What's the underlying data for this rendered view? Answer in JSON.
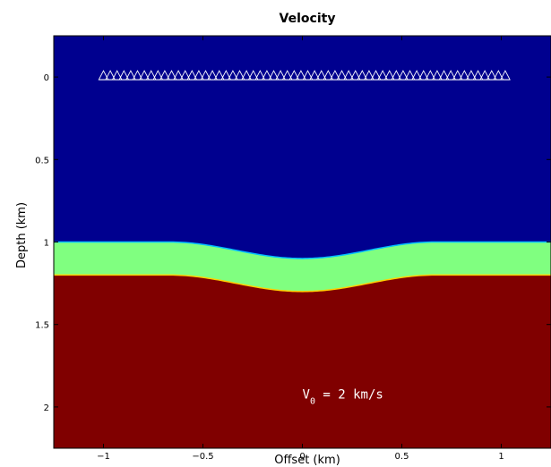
{
  "chart_data": {
    "type": "heatmap",
    "title": "Velocity",
    "xlabel": "Offset (km)",
    "ylabel": "Depth (km)",
    "xlim": [
      -1.25,
      1.25
    ],
    "ylim": [
      -0.25,
      2.25
    ],
    "y_inverted": true,
    "xticks": [
      -1,
      -0.5,
      0,
      0.5,
      1
    ],
    "xtick_labels": [
      "−1",
      "−0.5",
      "0",
      "0.5",
      "1"
    ],
    "yticks": [
      0,
      0.5,
      1,
      1.5,
      2
    ],
    "ytick_labels": [
      "0",
      "0.5",
      "1",
      "1.5",
      "2"
    ],
    "grid": false,
    "layers": [
      {
        "name": "top layer",
        "color": "#00008f"
      },
      {
        "name": "middle layer",
        "color": "#80ff80"
      },
      {
        "name": "bottom layer",
        "color": "#800000"
      }
    ],
    "interfaces": [
      {
        "flat_depth": 1.0,
        "center_depth": 1.1,
        "bump_halfwidth": 0.67,
        "line_color": "#00bfff"
      },
      {
        "flat_depth": 1.2,
        "center_depth": 1.3,
        "bump_halfwidth": 0.67,
        "line_color": "#ffcf00"
      }
    ],
    "receivers": {
      "x_start": -1.0,
      "x_end": 1.02,
      "count": 60,
      "depth": 0.0,
      "color": "#ffffff"
    },
    "annotation": {
      "x": 0.0,
      "y": 1.95,
      "base": "V",
      "sub": "0",
      "rest": " = 2 km/s"
    }
  }
}
